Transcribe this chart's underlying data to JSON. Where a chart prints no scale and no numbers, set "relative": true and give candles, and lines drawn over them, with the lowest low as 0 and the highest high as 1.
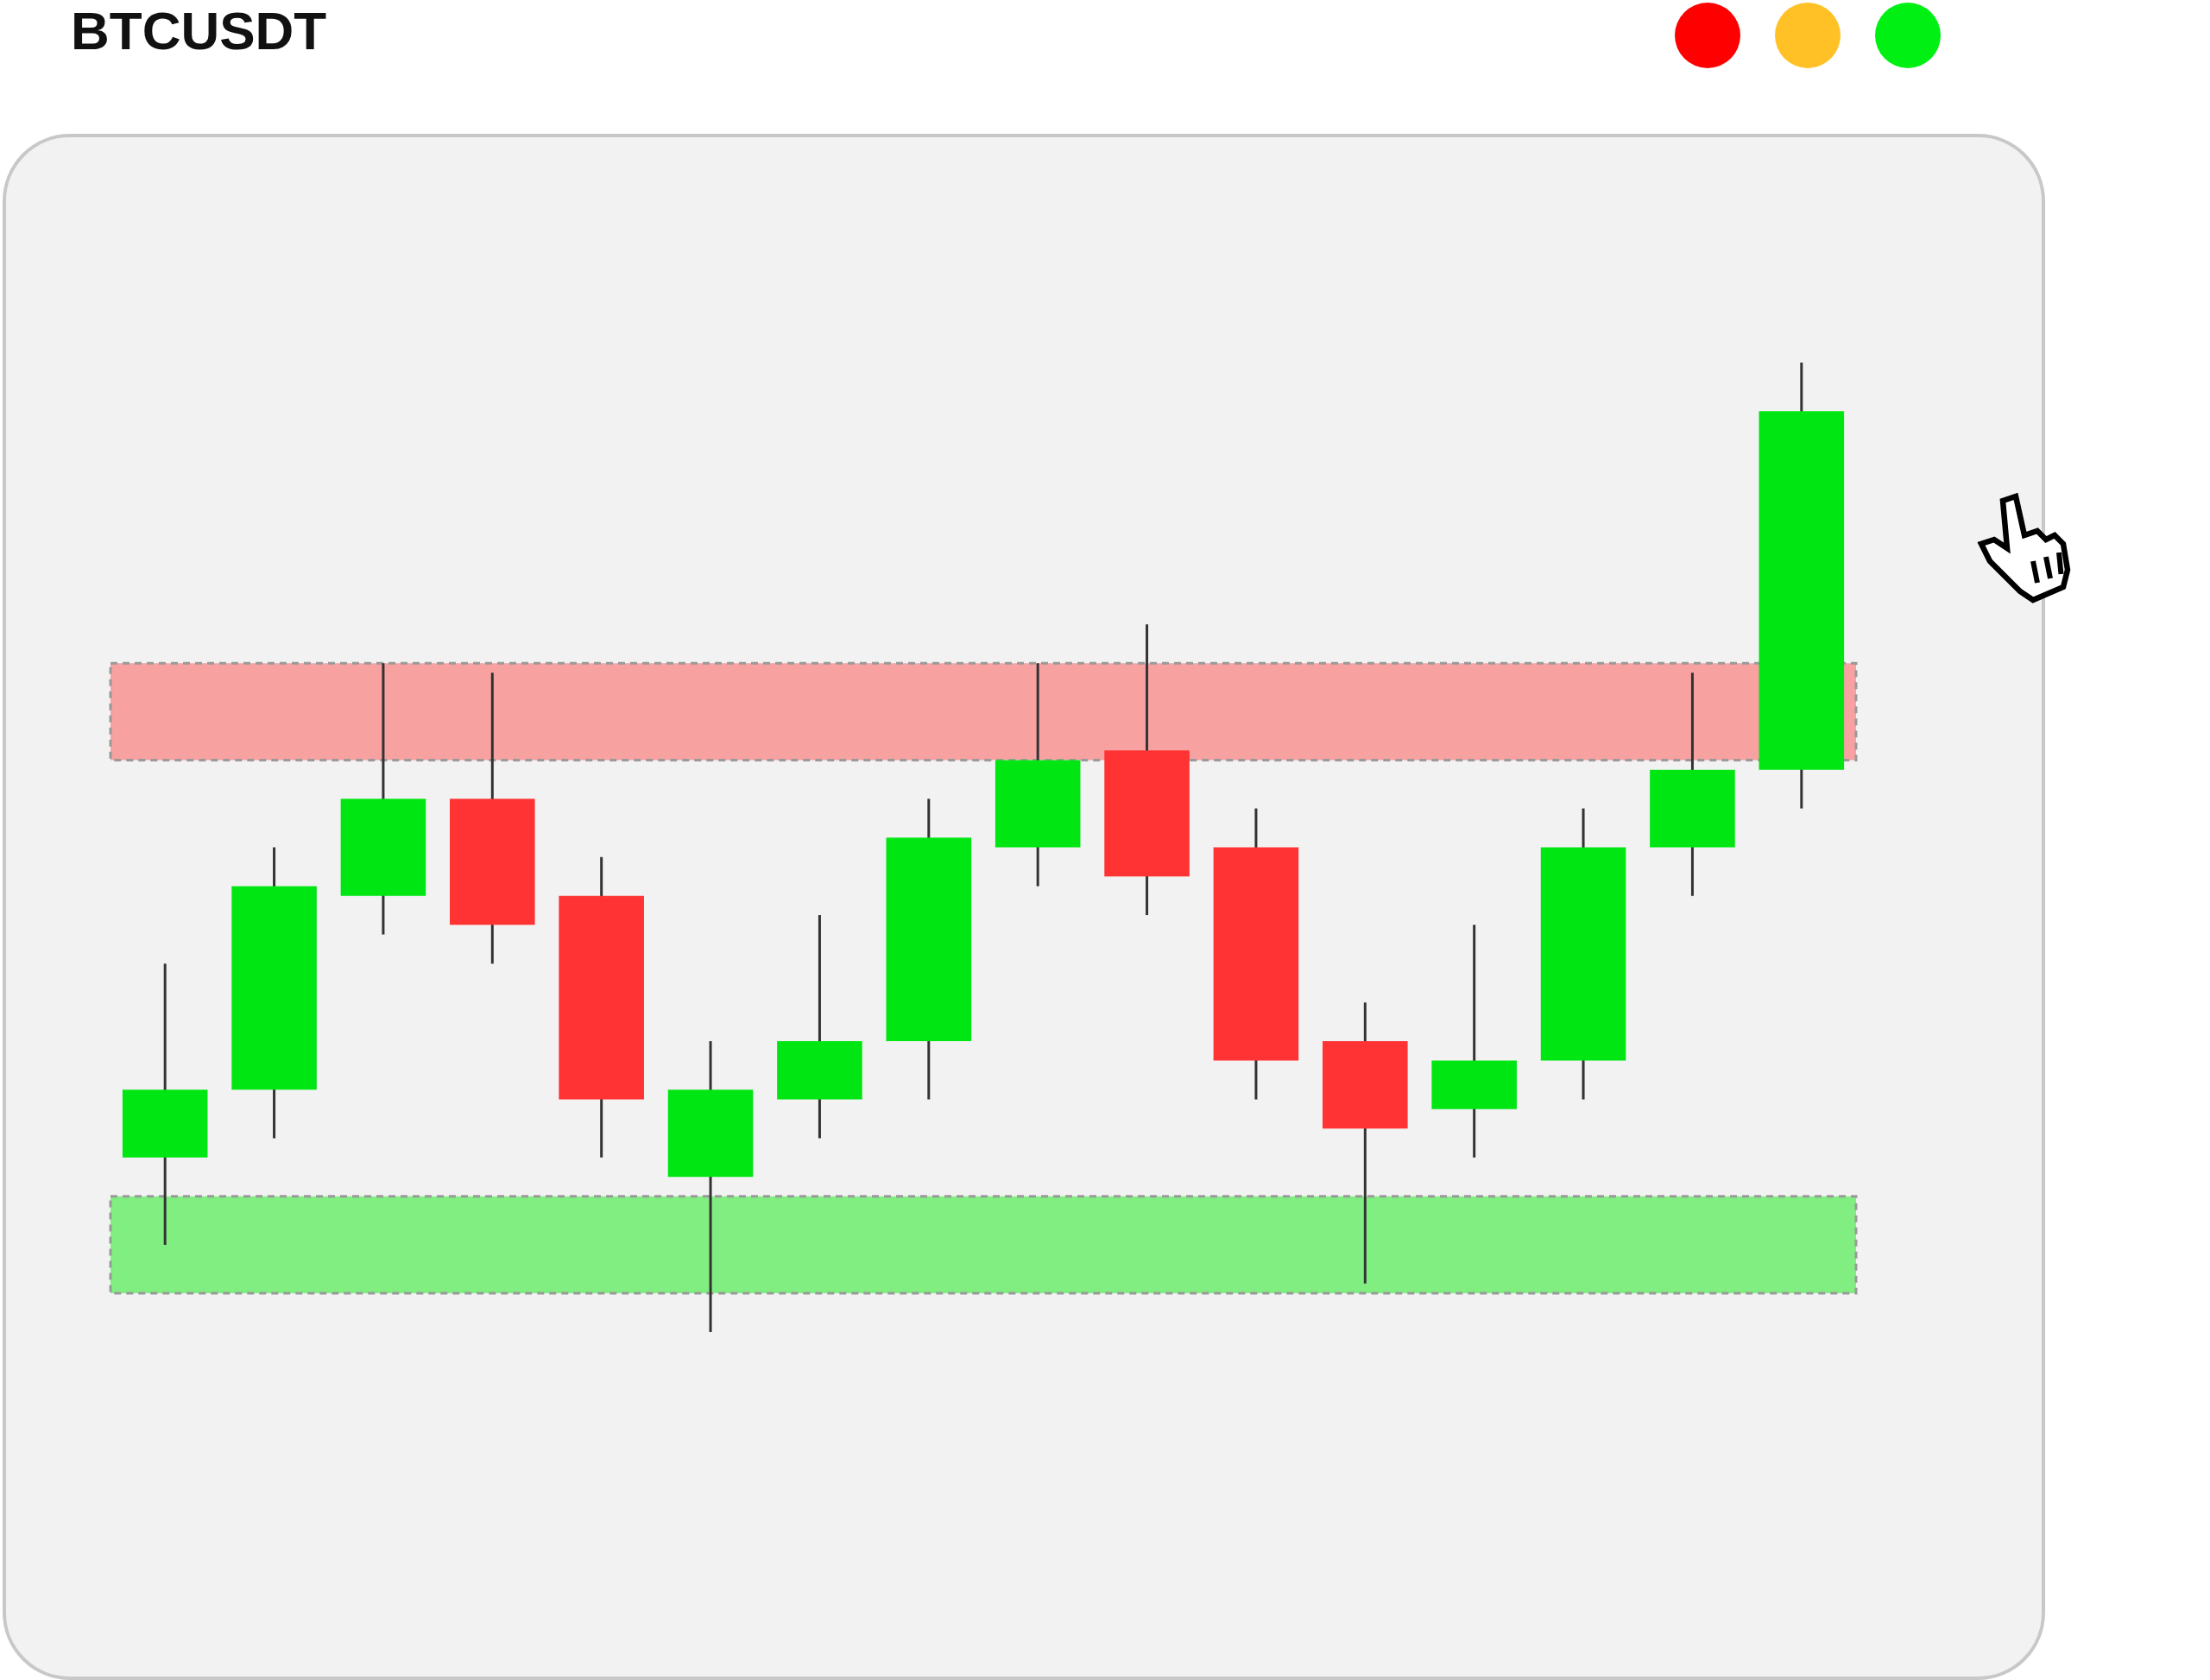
{
  "chart_data": {
    "type": "candlestick",
    "title": "BTCUSDT",
    "relative": true,
    "categories": [
      null,
      null,
      null,
      null,
      null,
      null,
      null,
      null,
      null,
      null,
      null,
      null,
      null,
      null,
      null,
      null
    ],
    "ohlc": [
      [
        0.18,
        0.38,
        0.09,
        0.25
      ],
      [
        0.25,
        0.5,
        0.2,
        0.46
      ],
      [
        0.45,
        0.69,
        0.41,
        0.55
      ],
      [
        0.55,
        0.68,
        0.38,
        0.42
      ],
      [
        0.45,
        0.49,
        0.18,
        0.24
      ],
      [
        0.16,
        0.3,
        0,
        0.25
      ],
      [
        0.24,
        0.43,
        0.2,
        0.3
      ],
      [
        0.3,
        0.55,
        0.24,
        0.51
      ],
      [
        0.5,
        0.69,
        0.46,
        0.59
      ],
      [
        0.6,
        0.73,
        0.43,
        0.47
      ],
      [
        0.5,
        0.54,
        0.24,
        0.28
      ],
      [
        0.3,
        0.34,
        0.05,
        0.21
      ],
      [
        0.23,
        0.42,
        0.18,
        0.28
      ],
      [
        0.28,
        0.54,
        0.24,
        0.5
      ],
      [
        0.5,
        0.68,
        0.45,
        0.58
      ],
      [
        0.58,
        1,
        0.54,
        0.95
      ]
    ],
    "colors": [
      "#00e613",
      "#00e613",
      "#00e613",
      "#ff3333",
      "#ff3333",
      "#00e613",
      "#00e613",
      "#00e613",
      "#00e613",
      "#ff3333",
      "#ff3333",
      "#ff3333",
      "#00e613",
      "#00e613",
      "#00e613",
      "#00e613"
    ],
    "bands": [
      {
        "axis": "y",
        "from": 0.59,
        "to": 0.69,
        "color": "#f7a1a1"
      },
      {
        "axis": "y",
        "from": 0.04,
        "to": 0.14,
        "color": "#80ee80"
      }
    ],
    "legend": false
  }
}
